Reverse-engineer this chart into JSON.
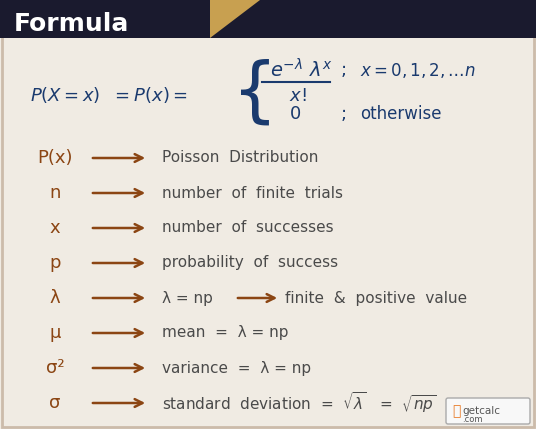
{
  "bg_color": "#f0ebe3",
  "header_bg": "#1a1a2e",
  "header_text": "Formula",
  "header_text_color": "#ffffff",
  "header_accent_color": "#c8a050",
  "main_formula_color": "#1a3a6e",
  "symbol_color": "#8B4513",
  "desc_color": "#4a4a4a",
  "arrow_color": "#8B4513",
  "border_color": "#ccbbaa",
  "logo_bg": "#ffffff",
  "logo_text_color_g": "#e87722",
  "logo_text_color_etc": "#555555",
  "rows": [
    {
      "symbol": "P(x)",
      "desc": "Poisson  Distribution"
    },
    {
      "symbol": "n",
      "desc": "number  of  finite  trials"
    },
    {
      "symbol": "x",
      "desc": "number  of  successes"
    },
    {
      "symbol": "p",
      "desc": "probability  of  success"
    },
    {
      "symbol": "λ",
      "desc": "λ = np",
      "extra": "→  finite  &  positive  value"
    },
    {
      "symbol": "μ",
      "desc": "mean  =  λ = np"
    },
    {
      "symbol": "σ²",
      "desc": "variance  =  λ = np"
    },
    {
      "symbol": "σ",
      "desc": "standard  deviation  =  √λ   =  √np"
    }
  ],
  "figsize": [
    5.36,
    4.29
  ],
  "dpi": 100
}
